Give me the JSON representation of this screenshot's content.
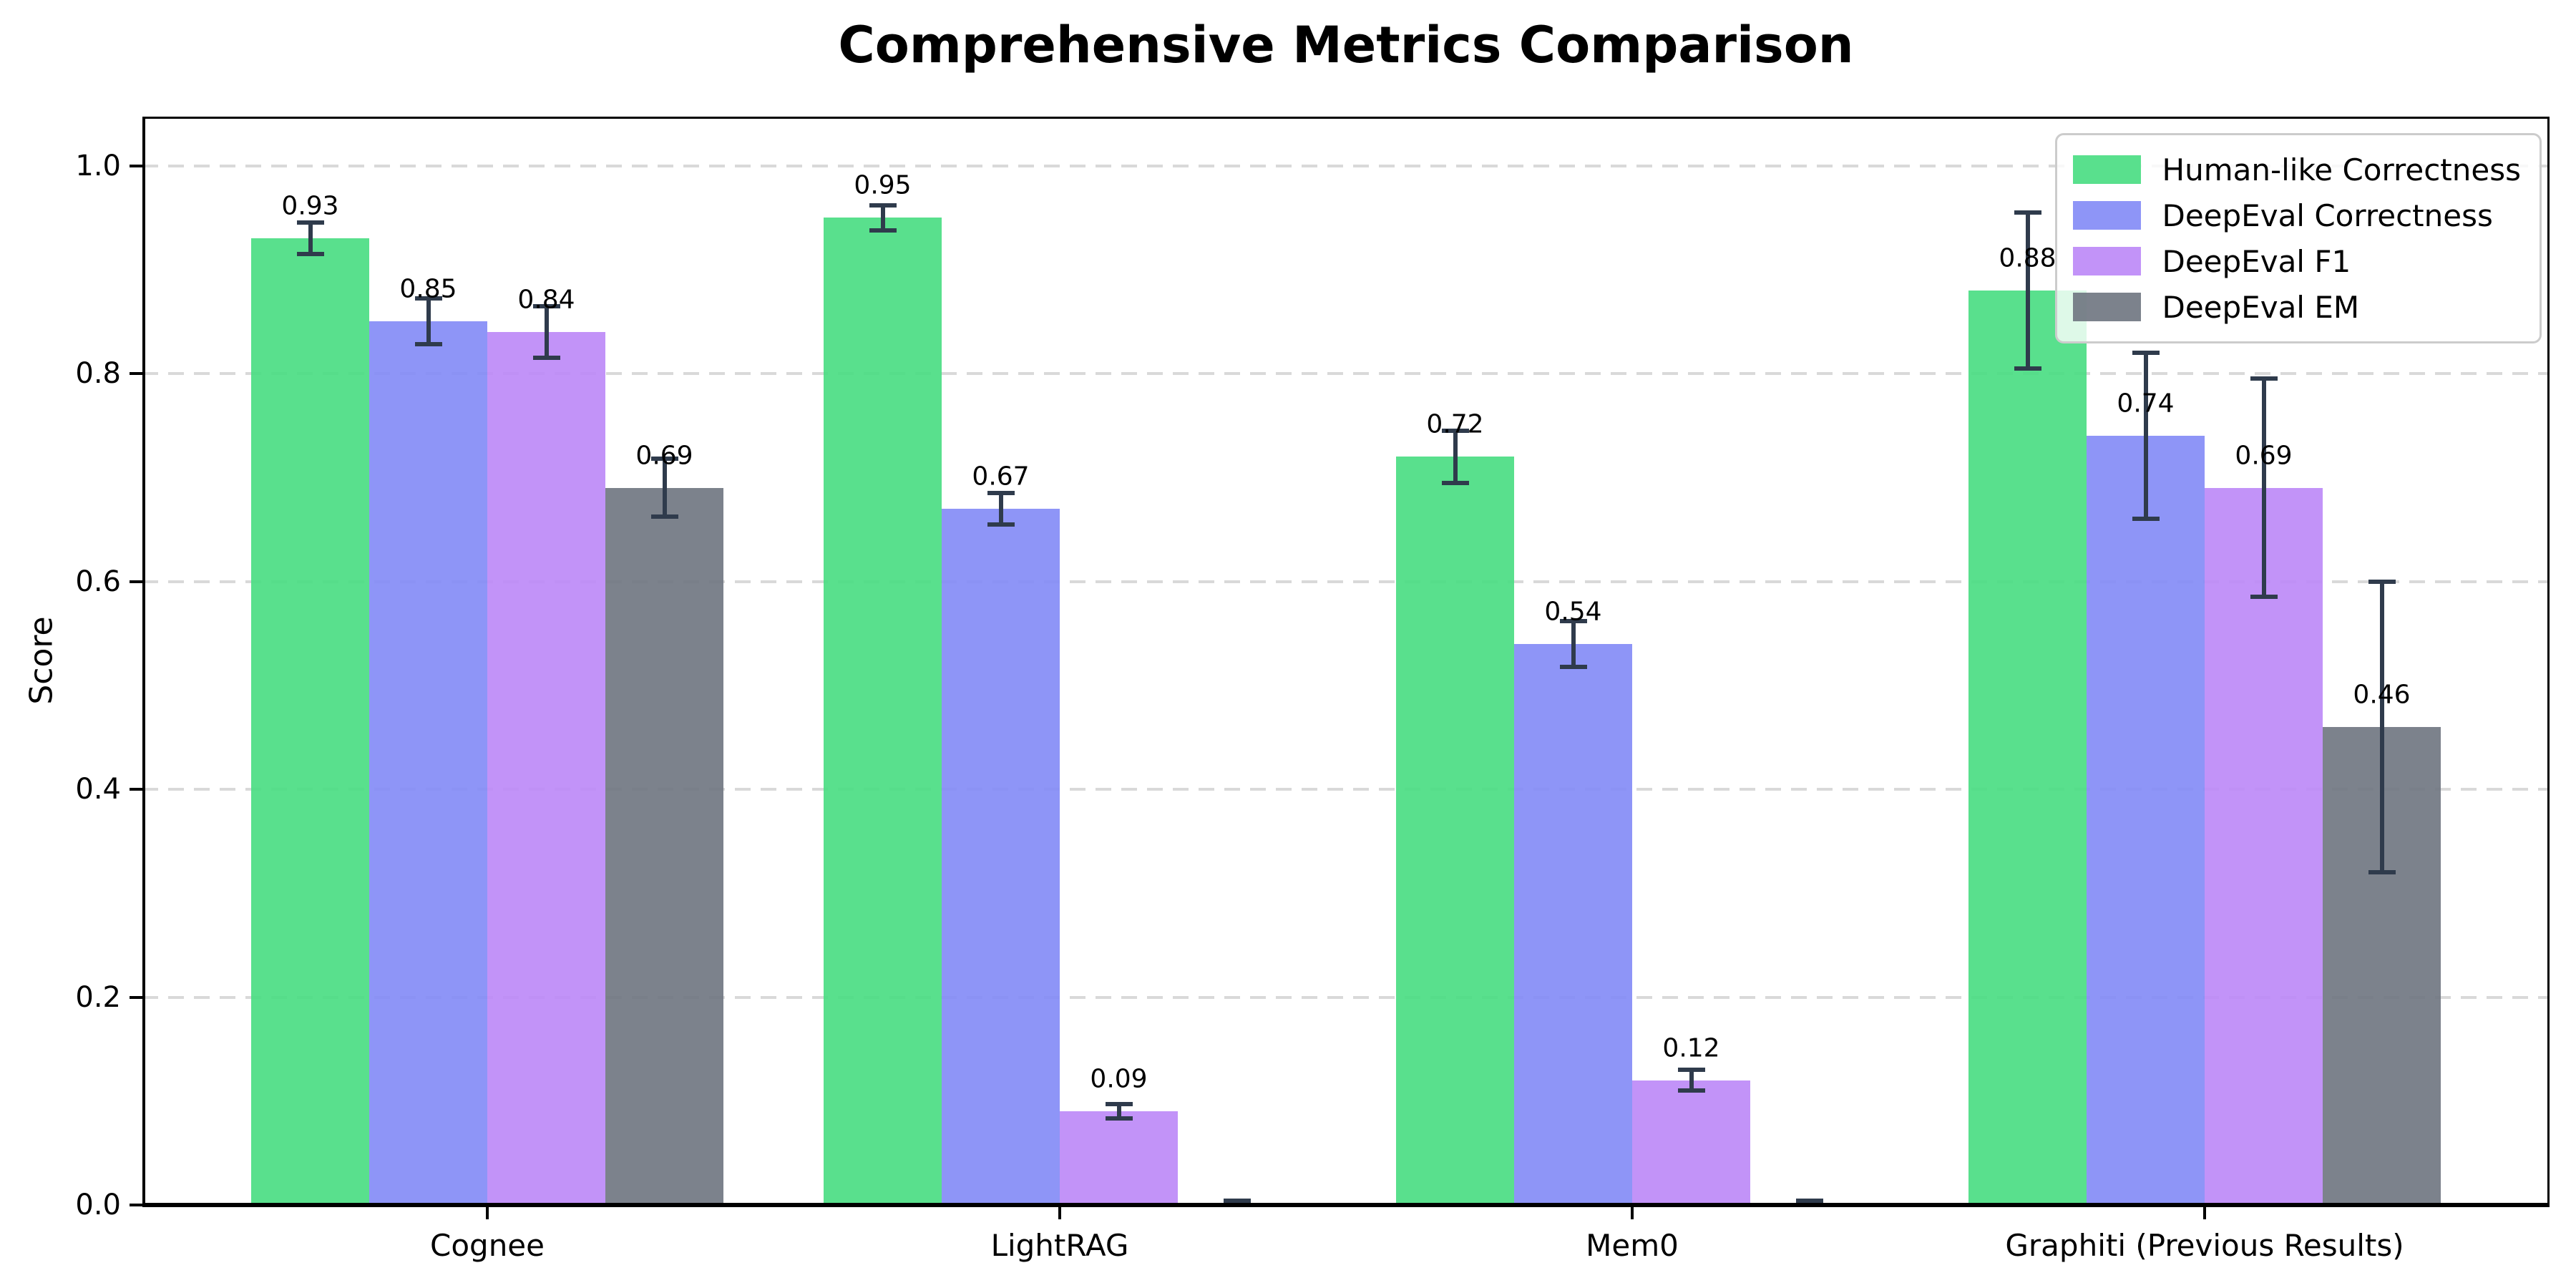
{
  "figure": {
    "background": "#ffffff",
    "text_color": "#000000"
  },
  "chart_data": {
    "type": "bar",
    "title": "Comprehensive Metrics Comparison",
    "xlabel": "",
    "ylabel": "Score",
    "categories": [
      "Cognee",
      "LightRAG",
      "Mem0",
      "Graphiti (Previous Results)"
    ],
    "series": [
      {
        "name": "Human-like Correctness",
        "color": "#47dd81",
        "values": [
          0.93,
          0.95,
          0.72,
          0.88
        ],
        "errors": [
          0.015,
          0.012,
          0.025,
          0.075
        ],
        "labels": [
          "0.93",
          "0.95",
          "0.72",
          "0.88"
        ]
      },
      {
        "name": "DeepEval Correctness",
        "color": "#8289f6",
        "values": [
          0.85,
          0.67,
          0.54,
          0.74
        ],
        "errors": [
          0.022,
          0.015,
          0.022,
          0.08
        ],
        "labels": [
          "0.85",
          "0.67",
          "0.54",
          "0.74"
        ]
      },
      {
        "name": "DeepEval F1",
        "color": "#bb87f7",
        "values": [
          0.84,
          0.09,
          0.12,
          0.69
        ],
        "errors": [
          0.025,
          0.007,
          0.01,
          0.105
        ],
        "labels": [
          "0.84",
          "0.09",
          "0.12",
          "0.69"
        ]
      },
      {
        "name": "DeepEval EM",
        "color": "#6e7480",
        "values": [
          0.69,
          0.0,
          0.0,
          0.46
        ],
        "errors": [
          0.028,
          0.004,
          0.004,
          0.14
        ],
        "labels": [
          "0.69",
          "",
          "",
          "0.46"
        ]
      }
    ],
    "yticks": [
      "0.0",
      "0.2",
      "0.4",
      "0.6",
      "0.8",
      "1.0"
    ],
    "ylim": [
      0,
      1.047
    ],
    "grid": "horizontal-dashed",
    "gridline_color": "#d9d9d9",
    "errorbar_color": "#2f3b4c",
    "legend_position": "upper right",
    "legend_border_color": "#cccccc"
  }
}
